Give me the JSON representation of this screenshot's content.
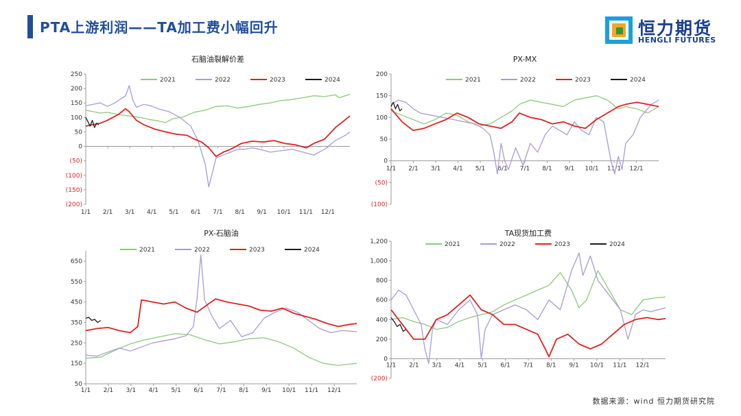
{
  "header": {
    "title": "PTA上游利润——TA加工费小幅回升",
    "logo_cn": "恒力期货",
    "logo_en": "HENGLI FUTURES"
  },
  "footer": {
    "source": "数据来源：wind  恒力期货研究院"
  },
  "chart_data": [
    {
      "type": "line",
      "title": "石脑油裂解价差",
      "xticks": [
        "1/1",
        "2/1",
        "3/1",
        "4/1",
        "5/1",
        "6/1",
        "7/1",
        "8/1",
        "9/1",
        "10/1",
        "11/1",
        "12/1"
      ],
      "yticks": [
        "250",
        "200",
        "150",
        "100",
        "50",
        "0",
        "(50)",
        "(100)",
        "(150)",
        "(200)"
      ],
      "ylim": [
        -200,
        250
      ],
      "legend_position": "top",
      "series": [
        {
          "name": "2021",
          "color": "#8cc97a",
          "x": [
            0,
            10,
            20,
            30,
            45,
            60,
            75,
            90,
            100,
            110,
            120,
            135,
            150,
            165,
            180,
            195,
            210,
            225,
            240,
            255,
            270,
            285,
            300,
            315,
            330,
            345,
            350,
            365
          ],
          "y": [
            125,
            120,
            115,
            118,
            110,
            105,
            100,
            92,
            88,
            82,
            95,
            102,
            118,
            125,
            138,
            140,
            132,
            138,
            145,
            150,
            158,
            162,
            168,
            175,
            172,
            178,
            168,
            180
          ]
        },
        {
          "name": "2022",
          "color": "#a89ad6",
          "x": [
            0,
            10,
            20,
            30,
            40,
            55,
            60,
            65,
            70,
            80,
            90,
            100,
            115,
            130,
            145,
            155,
            160,
            165,
            170,
            180,
            190,
            200,
            210,
            220,
            230,
            240,
            255,
            270,
            285,
            300,
            315,
            330,
            345,
            360,
            365
          ],
          "y": [
            140,
            145,
            150,
            138,
            150,
            175,
            210,
            160,
            135,
            145,
            140,
            130,
            120,
            100,
            70,
            20,
            -20,
            -60,
            -140,
            -40,
            -30,
            -20,
            -10,
            -10,
            -5,
            -10,
            -20,
            -15,
            -10,
            -20,
            -30,
            -10,
            20,
            40,
            50
          ]
        },
        {
          "name": "2023",
          "color": "#e02020",
          "x": [
            0,
            10,
            20,
            30,
            45,
            55,
            60,
            70,
            80,
            95,
            110,
            125,
            140,
            150,
            160,
            170,
            180,
            190,
            200,
            215,
            230,
            245,
            260,
            275,
            290,
            305,
            315,
            330,
            345,
            355,
            365
          ],
          "y": [
            70,
            75,
            80,
            90,
            110,
            130,
            120,
            90,
            75,
            60,
            50,
            42,
            38,
            25,
            15,
            -5,
            -35,
            -20,
            -10,
            10,
            18,
            15,
            20,
            10,
            5,
            -5,
            10,
            25,
            65,
            85,
            105
          ]
        },
        {
          "name": "2024",
          "color": "#1a1a1a",
          "x": [
            0,
            3,
            6,
            9,
            12,
            15,
            18
          ],
          "y": [
            100,
            85,
            70,
            90,
            65,
            80,
            75
          ]
        }
      ]
    },
    {
      "type": "line",
      "title": "PX-MX",
      "xticks": [
        "1/1",
        "2/1",
        "3/1",
        "4/1",
        "5/1",
        "6/1",
        "7/1",
        "8/1",
        "9/1",
        "10/1",
        "11/1",
        "12/1"
      ],
      "yticks": [
        "200",
        "150",
        "100",
        "50",
        "0",
        "(50)",
        "(100)"
      ],
      "ylim": [
        -100,
        200
      ],
      "legend_position": "top",
      "series": [
        {
          "name": "2021",
          "color": "#8cc97a",
          "x": [
            0,
            15,
            30,
            45,
            60,
            75,
            90,
            105,
            120,
            135,
            150,
            165,
            175,
            190,
            205,
            220,
            235,
            250,
            265,
            280,
            295,
            310,
            320,
            335,
            350,
            365
          ],
          "y": [
            115,
            105,
            95,
            85,
            95,
            110,
            105,
            90,
            80,
            85,
            100,
            115,
            130,
            140,
            135,
            130,
            125,
            140,
            145,
            150,
            140,
            120,
            125,
            120,
            110,
            125
          ]
        },
        {
          "name": "2022",
          "color": "#a89ad6",
          "x": [
            0,
            10,
            20,
            30,
            40,
            55,
            70,
            85,
            100,
            115,
            125,
            135,
            140,
            145,
            150,
            155,
            160,
            170,
            180,
            190,
            200,
            210,
            220,
            230,
            240,
            250,
            260,
            270,
            280,
            290,
            300,
            305,
            310,
            315,
            320,
            330,
            340,
            355,
            365
          ],
          "y": [
            130,
            140,
            135,
            120,
            110,
            105,
            100,
            95,
            90,
            85,
            75,
            60,
            20,
            -30,
            40,
            0,
            -20,
            30,
            -10,
            40,
            20,
            60,
            80,
            70,
            60,
            90,
            70,
            60,
            100,
            90,
            0,
            -30,
            10,
            -20,
            40,
            60,
            100,
            130,
            140
          ]
        },
        {
          "name": "2023",
          "color": "#e02020",
          "x": [
            0,
            15,
            30,
            45,
            60,
            75,
            90,
            105,
            120,
            135,
            150,
            165,
            175,
            190,
            205,
            220,
            235,
            250,
            265,
            280,
            295,
            310,
            320,
            335,
            350,
            365
          ],
          "y": [
            120,
            90,
            70,
            75,
            85,
            95,
            110,
            100,
            85,
            80,
            75,
            90,
            110,
            100,
            95,
            85,
            90,
            80,
            75,
            95,
            110,
            125,
            130,
            135,
            130,
            125
          ]
        },
        {
          "name": "2024",
          "color": "#1a1a1a",
          "x": [
            0,
            3,
            6,
            9,
            12,
            15
          ],
          "y": [
            125,
            135,
            120,
            130,
            115,
            120
          ]
        }
      ]
    },
    {
      "type": "line",
      "title": "PX-石脑油",
      "xticks": [
        "1/1",
        "2/1",
        "3/1",
        "4/1",
        "5/1",
        "6/1",
        "7/1",
        "8/1",
        "9/1",
        "10/1",
        "11/1",
        "12/1"
      ],
      "yticks": [
        "650",
        "550",
        "450",
        "350",
        "250",
        "150",
        "50"
      ],
      "ylim": [
        50,
        700
      ],
      "legend_position": "top",
      "series": [
        {
          "name": "2021",
          "color": "#8cc97a",
          "x": [
            0,
            20,
            40,
            60,
            80,
            100,
            120,
            140,
            160,
            180,
            200,
            220,
            240,
            260,
            280,
            300,
            320,
            340,
            365
          ],
          "y": [
            175,
            180,
            215,
            245,
            265,
            280,
            295,
            290,
            265,
            245,
            255,
            270,
            275,
            255,
            225,
            180,
            150,
            140,
            150
          ]
        },
        {
          "name": "2022",
          "color": "#a89ad6",
          "x": [
            0,
            15,
            30,
            45,
            60,
            75,
            90,
            105,
            120,
            135,
            145,
            150,
            155,
            160,
            170,
            180,
            195,
            210,
            225,
            240,
            255,
            270,
            285,
            300,
            315,
            330,
            345,
            365
          ],
          "y": [
            190,
            185,
            205,
            225,
            210,
            230,
            250,
            260,
            270,
            285,
            330,
            470,
            680,
            460,
            380,
            320,
            360,
            280,
            300,
            370,
            400,
            420,
            400,
            360,
            320,
            300,
            310,
            305
          ]
        },
        {
          "name": "2023",
          "color": "#e02020",
          "x": [
            0,
            15,
            30,
            45,
            60,
            70,
            75,
            90,
            105,
            120,
            135,
            150,
            165,
            175,
            190,
            205,
            220,
            235,
            250,
            265,
            280,
            295,
            310,
            325,
            340,
            355,
            365
          ],
          "y": [
            310,
            320,
            325,
            310,
            300,
            330,
            460,
            450,
            440,
            450,
            420,
            400,
            440,
            465,
            450,
            440,
            430,
            410,
            405,
            420,
            395,
            380,
            365,
            345,
            330,
            340,
            345
          ]
        },
        {
          "name": "2024",
          "color": "#1a1a1a",
          "x": [
            0,
            4,
            8,
            12,
            16,
            20
          ],
          "y": [
            370,
            375,
            360,
            365,
            350,
            360
          ]
        }
      ]
    },
    {
      "type": "line",
      "title": "TA现货加工费",
      "xticks": [
        "1/1",
        "2/1",
        "3/1",
        "4/1",
        "5/1",
        "6/1",
        "7/1",
        "8/1",
        "9/1",
        "10/1",
        "11/1",
        "12/1"
      ],
      "yticks": [
        "1,200",
        "1,000",
        "800",
        "600",
        "400",
        "200",
        "0",
        "(200)"
      ],
      "ylim": [
        -200,
        1200
      ],
      "legend_position": "top",
      "series": [
        {
          "name": "2021",
          "color": "#8cc97a",
          "x": [
            0,
            15,
            30,
            45,
            60,
            75,
            90,
            105,
            120,
            135,
            150,
            165,
            180,
            195,
            210,
            225,
            240,
            250,
            260,
            275,
            290,
            305,
            320,
            335,
            350,
            365
          ],
          "y": [
            400,
            420,
            380,
            350,
            300,
            320,
            380,
            420,
            450,
            480,
            550,
            600,
            650,
            700,
            750,
            880,
            700,
            520,
            600,
            900,
            700,
            500,
            450,
            600,
            620,
            630
          ]
        },
        {
          "name": "2022",
          "color": "#a89ad6",
          "x": [
            0,
            10,
            20,
            30,
            40,
            45,
            50,
            55,
            60,
            75,
            90,
            105,
            115,
            120,
            125,
            135,
            150,
            165,
            180,
            195,
            210,
            225,
            240,
            250,
            255,
            265,
            275,
            285,
            295,
            305,
            315,
            325,
            335,
            345,
            365
          ],
          "y": [
            600,
            700,
            650,
            500,
            350,
            100,
            -50,
            300,
            400,
            350,
            500,
            600,
            450,
            0,
            300,
            450,
            500,
            550,
            500,
            400,
            600,
            500,
            900,
            1080,
            850,
            1050,
            800,
            700,
            600,
            500,
            200,
            450,
            500,
            480,
            520
          ]
        },
        {
          "name": "2023",
          "color": "#e02020",
          "x": [
            0,
            10,
            20,
            30,
            45,
            60,
            75,
            90,
            105,
            120,
            135,
            150,
            165,
            180,
            195,
            205,
            210,
            220,
            235,
            250,
            265,
            280,
            295,
            310,
            325,
            340,
            355,
            365
          ],
          "y": [
            500,
            400,
            300,
            200,
            200,
            400,
            450,
            550,
            650,
            500,
            450,
            350,
            350,
            300,
            250,
            100,
            20,
            200,
            250,
            150,
            100,
            150,
            250,
            350,
            400,
            420,
            400,
            410
          ]
        },
        {
          "name": "2024",
          "color": "#1a1a1a",
          "x": [
            0,
            4,
            8,
            12,
            16,
            20
          ],
          "y": [
            420,
            380,
            330,
            350,
            280,
            300
          ]
        }
      ]
    }
  ]
}
